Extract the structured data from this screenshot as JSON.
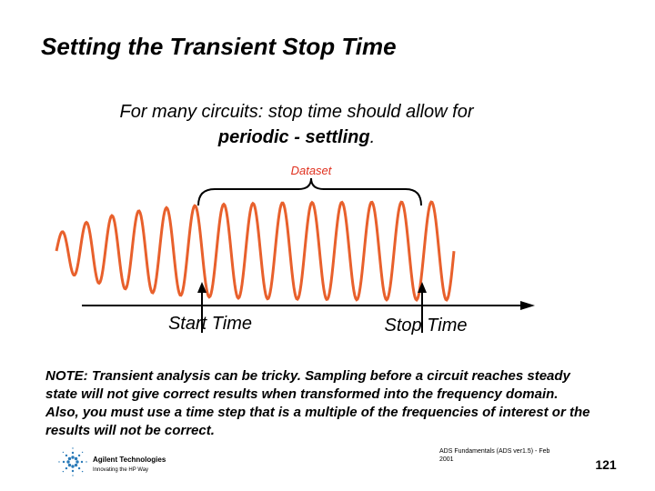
{
  "title": "Setting the Transient Stop Time",
  "subtitle": {
    "line1": "For many circuits: stop time should allow for",
    "line2_bold": "periodic - settling",
    "line2_end": "."
  },
  "diagram": {
    "dataset_label": "Dataset",
    "start_label": "Start Time",
    "stop_label": "Stop Time"
  },
  "note": {
    "lines": [
      "NOTE: Transient analysis can be tricky. Sampling before a circuit reaches steady",
      "state will not give correct results when transformed into the frequency domain.",
      "Also, you must use a time step that is a multiple of the frequencies of interest or the",
      "results will not be correct."
    ]
  },
  "footer": {
    "logo_name": "Agilent Technologies",
    "logo_tagline": "Innovating the HP Way",
    "source_line1": "ADS Fundamentals (ADS ver1.5) - Feb",
    "source_line2": "2001",
    "page_number": "121"
  }
}
